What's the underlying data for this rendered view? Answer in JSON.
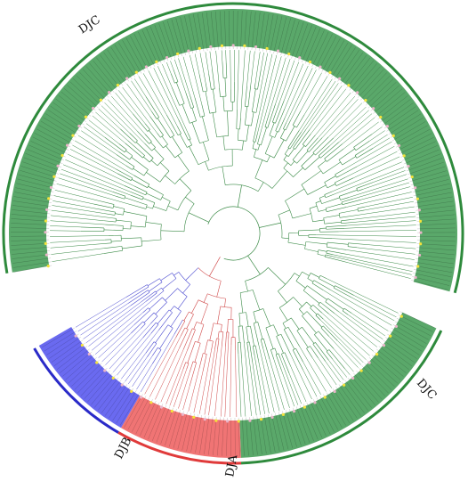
{
  "clades": [
    {
      "id": "DJC_top",
      "label": "DJC",
      "color": "#5aa86a",
      "ring_color": "#2e8a3c",
      "start_deg": -190,
      "end_deg": 15
    },
    {
      "id": "DJC_right",
      "label": "DJC",
      "color": "#5aa86a",
      "ring_color": "#2e8a3c",
      "start_deg": 25,
      "end_deg": 88
    },
    {
      "id": "DJA",
      "label": "DJA",
      "color": "#f07474",
      "ring_color": "#e03a3a",
      "start_deg": 88,
      "end_deg": 120
    },
    {
      "id": "DJB",
      "label": "DJB",
      "color": "#6a6af0",
      "ring_color": "#2a2ac8",
      "start_deg": 120,
      "end_deg": 150
    }
  ],
  "branch_colors": {
    "DJC": "#3a8a46",
    "DJA": "#d04a4a",
    "DJB": "#4a4ad0"
  },
  "leaf_marker_colors": [
    "#f4e23c",
    "#e8b4c8"
  ],
  "gap": {
    "start_deg": 15,
    "end_deg": 25
  }
}
